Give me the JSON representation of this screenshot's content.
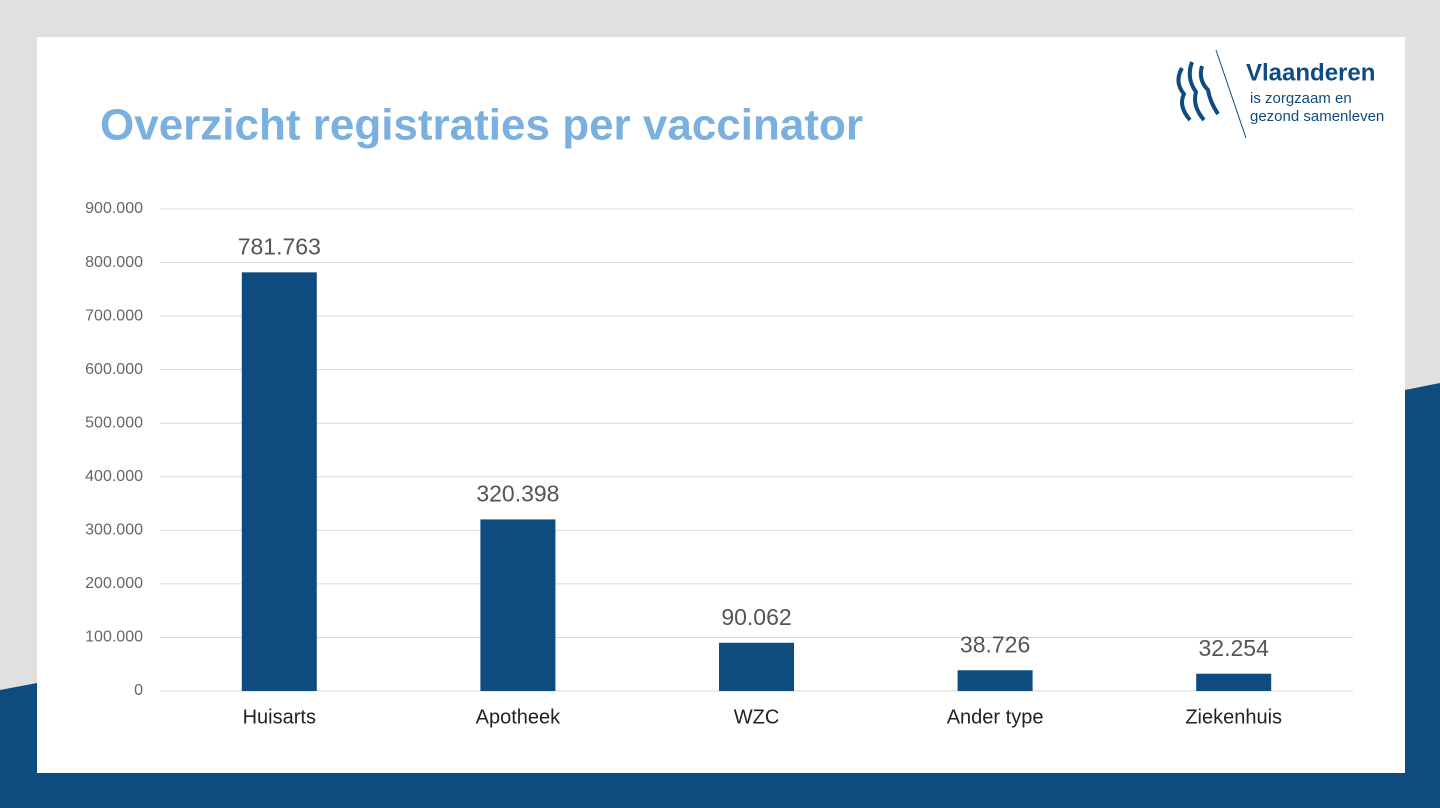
{
  "chart_data": {
    "type": "bar",
    "title": "Overzicht registraties per vaccinator",
    "categories": [
      "Huisarts",
      "Apotheek",
      "WZC",
      "Ander type",
      "Ziekenhuis"
    ],
    "values": [
      781763,
      320398,
      90062,
      38726,
      32254
    ],
    "value_labels": [
      "781.763",
      "320.398",
      "90.062",
      "38.726",
      "32.254"
    ],
    "color": "#0e4c80",
    "ylim": [
      0,
      900000
    ],
    "yticks": [
      0,
      {
        "value": 100000,
        "label": "100.000"
      },
      {
        "value": 200000,
        "label": "200.000"
      },
      {
        "value": 300000,
        "label": "300.000"
      },
      {
        "value": 400000,
        "label": "400.000"
      },
      {
        "value": 500000,
        "label": "500.000"
      },
      {
        "value": 600000,
        "label": "600.000"
      },
      {
        "value": 700000,
        "label": "700.000"
      },
      {
        "value": 800000,
        "label": "800.000"
      },
      {
        "value": 900000,
        "label": "900.000"
      }
    ],
    "grid": true
  },
  "logo": {
    "name": "Vlaanderen",
    "tagline": [
      "is zorgzaam en",
      "gezond samenleven"
    ]
  }
}
